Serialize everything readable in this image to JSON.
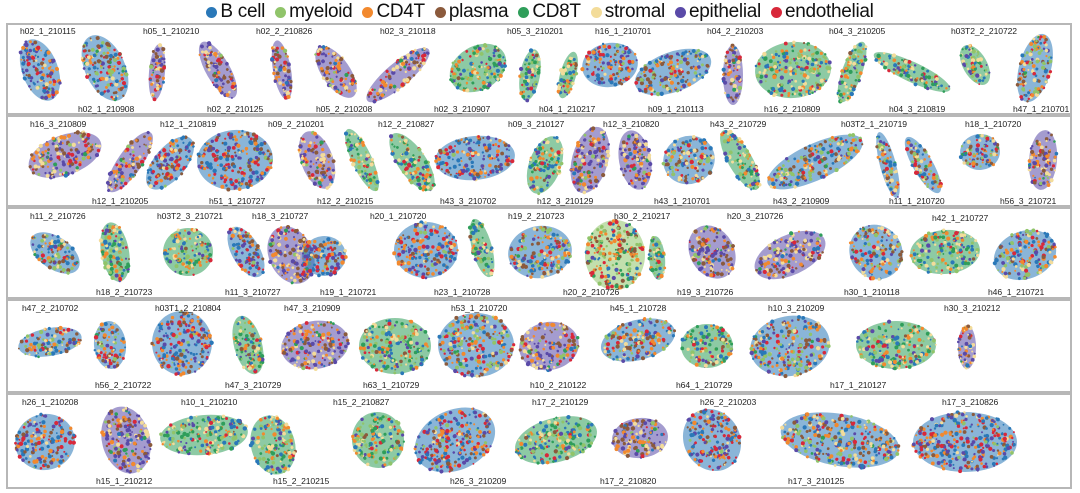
{
  "legend": {
    "items": [
      {
        "label": "B cell",
        "color": "#2a78b8"
      },
      {
        "label": "myeloid",
        "color": "#90c46a"
      },
      {
        "label": "CD4T",
        "color": "#f2892e"
      },
      {
        "label": "plasma",
        "color": "#8b5a3c"
      },
      {
        "label": "CD8T",
        "color": "#2f9e5a"
      },
      {
        "label": "stromal",
        "color": "#f3dc9a"
      },
      {
        "label": "epithelial",
        "color": "#5a4aa8"
      },
      {
        "label": "endothelial",
        "color": "#d8283a"
      }
    ]
  },
  "samples": [
    "h02_1_210115",
    "h05_1_210210",
    "h02_2_210826",
    "h02_3_210118",
    "h05_3_210201",
    "h16_1_210701",
    "h04_2_210203",
    "h04_3_210205",
    "h03T2_2_210722",
    "h02_1_210908",
    "h02_2_210125",
    "h05_2_210208",
    "h02_3_210907",
    "h04_1_210217",
    "h09_1_210113",
    "h16_2_210809",
    "h04_3_210819",
    "h47_1_210701",
    "h16_3_210809",
    "h12_1_210819",
    "h09_2_210201",
    "h12_2_210827",
    "h09_3_210127",
    "h12_3_210820",
    "h43_2_210729",
    "h03T2_1_210719",
    "h18_1_210720",
    "h12_1_210205",
    "h51_1_210727",
    "h12_2_210215",
    "h43_3_210702",
    "h12_3_210129",
    "h43_1_210701",
    "h43_2_210909",
    "h11_1_210720",
    "h56_3_210721",
    "h11_2_210726",
    "h03T2_3_210721",
    "h18_3_210727",
    "h20_1_210720",
    "h19_2_210723",
    "h30_2_210217",
    "h20_3_210726",
    "h42_1_210727",
    "h18_2_210723",
    "h11_3_210727",
    "h19_1_210721",
    "h23_1_210728",
    "h20_2_210726",
    "h19_3_210726",
    "h30_1_210118",
    "h46_1_210721",
    "h47_2_210702",
    "h03T1_2_210804",
    "h47_3_210909",
    "h53_1_210720",
    "h45_1_210728",
    "h10_3_210209",
    "h30_3_210212",
    "h56_2_210722",
    "h47_3_210729",
    "h63_1_210729",
    "h10_2_210122",
    "h64_1_210729",
    "h17_1_210127",
    "h26_1_210208",
    "h10_1_210210",
    "h15_2_210827",
    "h17_2_210129",
    "h26_2_210203",
    "h17_3_210826",
    "h15_1_210212",
    "h15_2_210215",
    "h26_3_210209",
    "h17_2_210820",
    "h17_3_210125"
  ]
}
